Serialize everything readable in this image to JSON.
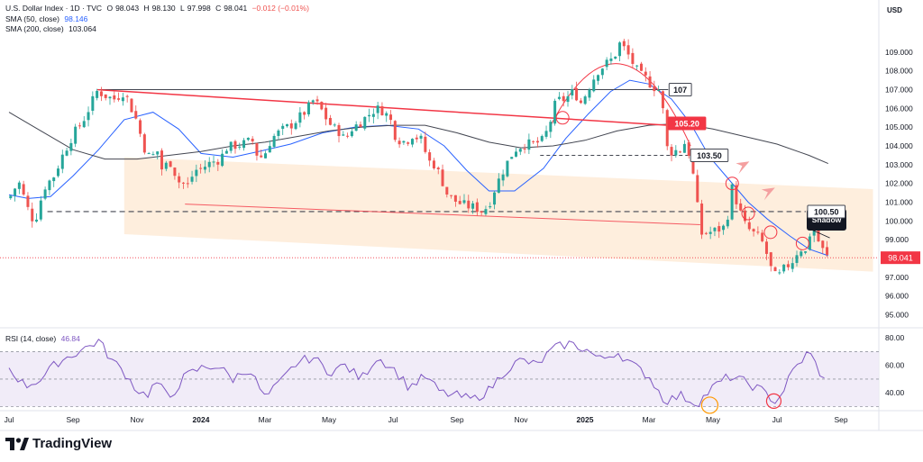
{
  "header": {
    "symbol": "U.S. Dollar Index · 1D · TVC",
    "open_label": "O",
    "open": "98.043",
    "high_label": "H",
    "high": "98.130",
    "low_label": "L",
    "low": "97.998",
    "close_label": "C",
    "close": "98.041",
    "change": "−0.012 (−0.01%)",
    "sma50_label": "SMA (50, close)",
    "sma50_value": "98.146",
    "sma200_label": "SMA (200, close)",
    "sma200_value": "103.064",
    "rsi_label": "RSI (14, close)",
    "rsi_value": "46.84"
  },
  "currency": "USD",
  "brand": "TradingView",
  "colors": {
    "up": "#26a69a",
    "down": "#ef5350",
    "sma50": "#2962ff",
    "sma200": "#434651",
    "rsi": "#7e57c2",
    "rsi_band": "#ede7f6",
    "channel": "#fde8d2",
    "resistance": "#f23645",
    "price_badge": "#f23645",
    "ellipse": "#f23645",
    "rsi_circle": "#ff9800"
  },
  "chart_data": [
    {
      "type": "candlestick",
      "title": "U.S. Dollar Index · 1D · TVC",
      "ylim": [
        94.4,
        111.3
      ],
      "y_ticks": [
        95.0,
        96.0,
        97.0,
        98.0,
        99.0,
        100.0,
        101.0,
        102.0,
        103.0,
        104.0,
        105.0,
        106.0,
        107.0,
        108.0,
        109.0
      ],
      "x_ticks": [
        "Jul",
        "Sep",
        "Nov",
        "2024",
        "Mar",
        "May",
        "Jul",
        "Sep",
        "Nov",
        "2025",
        "Mar",
        "May",
        "Jul",
        "Sep"
      ],
      "x_tick_months": [
        0,
        2,
        4,
        6,
        8,
        10,
        12,
        14,
        16,
        18,
        20,
        22,
        24,
        26
      ],
      "last_price": 98.041,
      "price_path": [
        [
          0.0,
          101.2
        ],
        [
          0.3,
          102.1
        ],
        [
          0.6,
          100.6
        ],
        [
          0.8,
          99.9
        ],
        [
          1.1,
          101.8
        ],
        [
          1.4,
          102.4
        ],
        [
          1.7,
          103.6
        ],
        [
          2.0,
          104.6
        ],
        [
          2.3,
          105.3
        ],
        [
          2.5,
          106.0
        ],
        [
          2.75,
          106.9
        ],
        [
          2.9,
          106.8
        ],
        [
          3.1,
          106.6
        ],
        [
          3.3,
          106.5
        ],
        [
          3.6,
          106.9
        ],
        [
          3.8,
          106.1
        ],
        [
          4.0,
          105.3
        ],
        [
          4.2,
          104.0
        ],
        [
          4.45,
          103.2
        ],
        [
          4.6,
          104.0
        ],
        [
          4.8,
          102.6
        ],
        [
          5.0,
          103.3
        ],
        [
          5.3,
          102.1
        ],
        [
          5.6,
          101.9
        ],
        [
          5.8,
          102.7
        ],
        [
          6.0,
          102.8
        ],
        [
          6.3,
          103.1
        ],
        [
          6.6,
          103.3
        ],
        [
          6.8,
          103.9
        ],
        [
          7.0,
          104.0
        ],
        [
          7.3,
          104.1
        ],
        [
          7.6,
          104.3
        ],
        [
          7.8,
          103.3
        ],
        [
          8.0,
          103.6
        ],
        [
          8.2,
          104.4
        ],
        [
          8.5,
          104.8
        ],
        [
          8.8,
          105.1
        ],
        [
          9.0,
          105.4
        ],
        [
          9.3,
          105.9
        ],
        [
          9.5,
          106.4
        ],
        [
          9.7,
          106.1
        ],
        [
          9.9,
          105.5
        ],
        [
          10.1,
          105.0
        ],
        [
          10.3,
          104.8
        ],
        [
          10.5,
          104.3
        ],
        [
          10.7,
          104.9
        ],
        [
          11.0,
          105.3
        ],
        [
          11.2,
          105.6
        ],
        [
          11.4,
          105.9
        ],
        [
          11.6,
          106.0
        ],
        [
          11.9,
          105.5
        ],
        [
          12.1,
          104.4
        ],
        [
          12.4,
          104.2
        ],
        [
          12.6,
          104.6
        ],
        [
          12.9,
          104.3
        ],
        [
          13.1,
          103.2
        ],
        [
          13.3,
          103.0
        ],
        [
          13.5,
          102.3
        ],
        [
          13.7,
          101.4
        ],
        [
          14.0,
          101.0
        ],
        [
          14.3,
          100.8
        ],
        [
          14.6,
          100.7
        ],
        [
          14.8,
          100.5
        ],
        [
          15.0,
          100.9
        ],
        [
          15.2,
          101.8
        ],
        [
          15.5,
          102.9
        ],
        [
          15.8,
          103.8
        ],
        [
          16.1,
          104.1
        ],
        [
          16.4,
          104.1
        ],
        [
          16.7,
          104.3
        ],
        [
          16.9,
          105.2
        ],
        [
          17.1,
          106.4
        ],
        [
          17.4,
          106.5
        ],
        [
          17.7,
          107.0
        ],
        [
          17.8,
          106.1
        ],
        [
          18.0,
          106.7
        ],
        [
          18.2,
          107.4
        ],
        [
          18.4,
          108.0
        ],
        [
          18.6,
          108.3
        ],
        [
          18.9,
          108.7
        ],
        [
          19.1,
          109.5
        ],
        [
          19.3,
          109.0
        ],
        [
          19.5,
          108.4
        ],
        [
          19.7,
          107.8
        ],
        [
          19.9,
          107.6
        ],
        [
          20.1,
          107.2
        ],
        [
          20.4,
          106.9
        ],
        [
          20.5,
          104.0
        ],
        [
          20.7,
          103.7
        ],
        [
          21.0,
          103.8
        ],
        [
          21.1,
          104.2
        ],
        [
          21.3,
          103.4
        ],
        [
          21.5,
          101.0
        ],
        [
          21.6,
          99.3
        ],
        [
          21.9,
          99.4
        ],
        [
          22.1,
          99.5
        ],
        [
          22.4,
          99.7
        ],
        [
          22.6,
          101.8
        ],
        [
          22.8,
          100.7
        ],
        [
          23.0,
          99.8
        ],
        [
          23.2,
          99.4
        ],
        [
          23.4,
          99.2
        ],
        [
          23.6,
          98.7
        ],
        [
          23.8,
          97.5
        ],
        [
          24.0,
          96.9
        ],
        [
          24.2,
          97.4
        ],
        [
          24.5,
          97.9
        ],
        [
          24.7,
          98.6
        ],
        [
          24.9,
          98.3
        ],
        [
          25.1,
          99.9
        ],
        [
          25.3,
          98.9
        ],
        [
          25.5,
          98.2
        ],
        [
          25.6,
          98.04
        ]
      ],
      "series": [
        {
          "name": "SMA (50, close)",
          "x": [
            0.0,
            0.6,
            1.3,
            2.0,
            2.8,
            3.6,
            4.5,
            5.3,
            6.0,
            7.0,
            7.8,
            8.8,
            9.8,
            10.8,
            11.8,
            12.8,
            13.6,
            14.3,
            15.0,
            15.8,
            16.7,
            17.4,
            18.1,
            18.8,
            19.4,
            20.0,
            20.7,
            21.3,
            21.9,
            22.5,
            23.1,
            23.7,
            24.4,
            25.0,
            25.6
          ],
          "values": [
            101.4,
            101.2,
            101.3,
            102.4,
            103.8,
            105.4,
            105.8,
            104.9,
            103.6,
            103.4,
            103.7,
            104.1,
            104.7,
            105.0,
            105.1,
            104.9,
            104.0,
            102.7,
            101.6,
            101.6,
            102.8,
            104.4,
            105.7,
            106.9,
            107.5,
            107.3,
            106.5,
            105.2,
            103.4,
            102.2,
            101.0,
            100.1,
            99.2,
            98.5,
            98.15
          ]
        },
        {
          "name": "SMA (200, close)",
          "x": [
            0.0,
            1.0,
            2.0,
            3.0,
            4.0,
            5.0,
            6.0,
            7.0,
            8.0,
            9.0,
            10.0,
            11.0,
            12.0,
            13.0,
            14.0,
            15.0,
            16.0,
            17.0,
            18.0,
            19.0,
            20.0,
            21.0,
            22.0,
            23.0,
            24.0,
            25.0,
            25.6
          ],
          "values": [
            105.8,
            104.8,
            103.8,
            103.3,
            103.3,
            103.5,
            103.7,
            104.0,
            104.2,
            104.5,
            104.8,
            105.0,
            105.1,
            105.1,
            104.7,
            104.2,
            103.9,
            104.0,
            104.3,
            104.8,
            105.1,
            105.2,
            104.9,
            104.5,
            104.1,
            103.5,
            103.06
          ]
        }
      ],
      "annotations": {
        "levels": [
          {
            "label": "107",
            "value": 107.0,
            "from": 2.75,
            "to": 20.6
          },
          {
            "label": "105.20",
            "value": 105.2
          },
          {
            "label": "103.50",
            "value": 103.5,
            "from": 16.6,
            "to": 21.3
          },
          {
            "label": "100.50",
            "value": 100.5,
            "from": 1.2,
            "to": 24.9
          }
        ],
        "resistance_line": [
          [
            2.75,
            107.0
          ],
          [
            20.6,
            105.1
          ]
        ],
        "support_line": [
          [
            5.5,
            100.9
          ],
          [
            21.6,
            99.8
          ]
        ],
        "channel": [
          [
            3.6,
            103.4
          ],
          [
            27.0,
            101.7
          ],
          [
            27.0,
            97.3
          ],
          [
            3.6,
            99.3
          ]
        ],
        "arc": [
          [
            16.9,
            105.0
          ],
          [
            19.1,
            109.6
          ],
          [
            21.3,
            104.0
          ]
        ],
        "circles": [
          [
            17.3,
            105.5
          ],
          [
            22.6,
            102.0
          ],
          [
            23.1,
            100.4
          ],
          [
            23.8,
            99.4
          ],
          [
            24.8,
            98.8
          ]
        ],
        "arrows": [
          [
            22.8,
            102.6
          ],
          [
            23.6,
            101.2
          ]
        ],
        "callout": "Shadow"
      }
    },
    {
      "type": "line",
      "title": "RSI (14, close)",
      "ylim": [
        29,
        86
      ],
      "y_ticks": [
        40.0,
        60.0,
        80.0
      ],
      "bands": [
        30,
        70
      ],
      "midline": 50,
      "x": [
        0.0,
        0.5,
        1.0,
        1.5,
        2.0,
        2.5,
        2.8,
        3.2,
        3.6,
        4.0,
        4.3,
        4.6,
        5.0,
        5.5,
        6.0,
        6.5,
        7.0,
        7.5,
        8.0,
        8.5,
        9.0,
        9.5,
        10.0,
        10.5,
        11.0,
        11.5,
        12.0,
        12.5,
        13.0,
        13.5,
        14.0,
        14.5,
        15.0,
        15.5,
        16.0,
        16.5,
        17.0,
        17.5,
        18.0,
        18.5,
        19.0,
        19.5,
        20.0,
        20.5,
        21.0,
        21.5,
        22.0,
        22.5,
        23.0,
        23.5,
        24.0,
        24.5,
        25.0,
        25.5,
        25.6
      ],
      "values": [
        58,
        45,
        50,
        62,
        68,
        74,
        78,
        64,
        55,
        42,
        38,
        48,
        36,
        52,
        58,
        60,
        50,
        58,
        36,
        48,
        62,
        66,
        55,
        60,
        50,
        66,
        58,
        44,
        52,
        40,
        38,
        35,
        42,
        56,
        64,
        60,
        72,
        76,
        72,
        64,
        70,
        60,
        52,
        34,
        38,
        32,
        44,
        52,
        48,
        42,
        33,
        56,
        70,
        48,
        46.84
      ]
    }
  ]
}
